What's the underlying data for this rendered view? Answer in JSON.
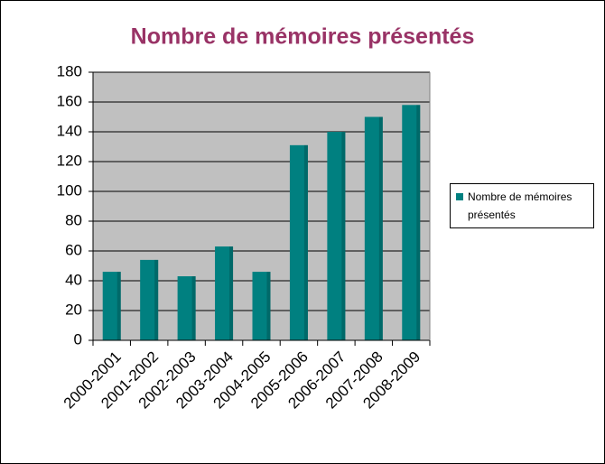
{
  "chart_data": {
    "type": "bar",
    "title": "Nombre de mémoires présentés",
    "categories": [
      "2000-2001",
      "2001-2002",
      "2002-2003",
      "2003-2004",
      "2004-2005",
      "2005-2006",
      "2006-2007",
      "2007-2008",
      "2008-2009"
    ],
    "series": [
      {
        "name": "Nombre de mémoires présentés",
        "color": "#008080",
        "values": [
          46,
          54,
          43,
          63,
          46,
          131,
          140,
          150,
          158
        ]
      }
    ],
    "ylim": [
      0,
      180
    ],
    "yticks": [
      0,
      20,
      40,
      60,
      80,
      100,
      120,
      140,
      160,
      180
    ],
    "grid": true,
    "legend": "right"
  }
}
